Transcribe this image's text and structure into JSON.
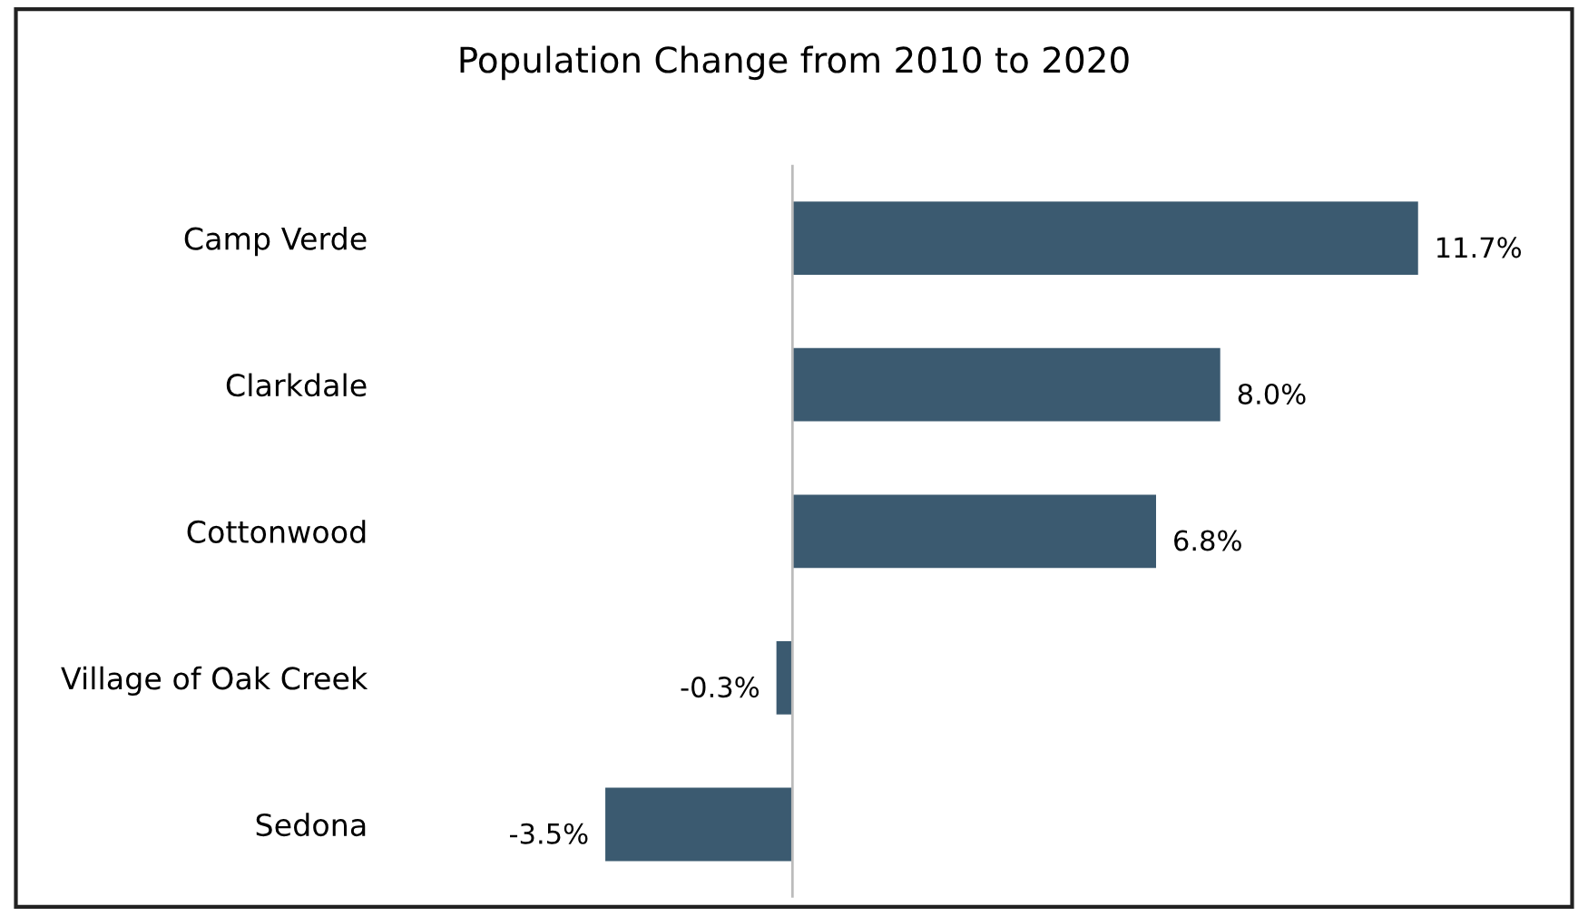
{
  "chart_data": {
    "type": "bar",
    "orientation": "horizontal",
    "title": "Population Change from 2010 to 2020",
    "categories": [
      "Camp Verde",
      "Clarkdale",
      "Cottonwood",
      "Village of Oak Creek",
      "Sedona"
    ],
    "values": [
      11.7,
      8.0,
      6.8,
      -0.3,
      -3.5
    ],
    "value_labels": [
      "11.7%",
      "8.0%",
      "6.8%",
      "-0.3%",
      "-3.5%"
    ],
    "color": "#3b5a70",
    "grid": false,
    "legend": false
  }
}
